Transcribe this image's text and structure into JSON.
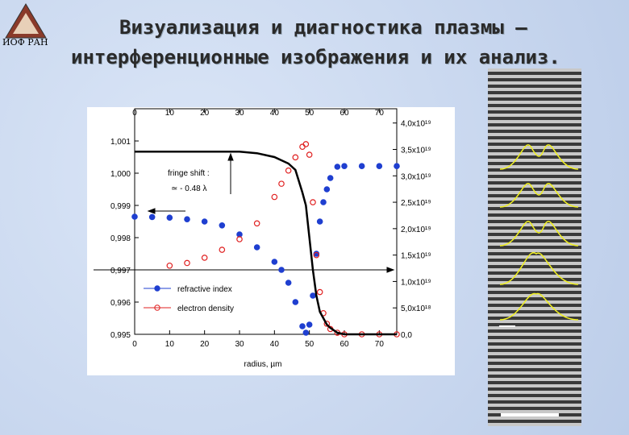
{
  "slide": {
    "logo": "ИОФ РАН",
    "title_lines": [
      "Визуализация и диагностика плазмы –",
      "интерференционные изображения и их анализ."
    ]
  },
  "chart_data": {
    "type": "line",
    "xlabel": "radius, µm",
    "annotations": [
      "fringe shift :",
      "≃ - 0.48 λ"
    ],
    "x": [
      0,
      5,
      10,
      15,
      20,
      25,
      30,
      35,
      40,
      42,
      44,
      46,
      48,
      49,
      50,
      51,
      52,
      53,
      54,
      55,
      56,
      58,
      60,
      65,
      70,
      75
    ],
    "xlim": [
      0,
      75
    ],
    "xticks": [
      0,
      10,
      20,
      30,
      40,
      50,
      60,
      70
    ],
    "ylim": [
      0.995,
      1.002
    ],
    "yticks": [
      {
        "value": 0.995,
        "label": "0,995"
      },
      {
        "value": 0.996,
        "label": "0,996"
      },
      {
        "value": 0.997,
        "label": "0,997"
      },
      {
        "value": 0.998,
        "label": "0,998"
      },
      {
        "value": 0.999,
        "label": "0,999"
      },
      {
        "value": 1.0,
        "label": "1,000"
      },
      {
        "value": 1.001,
        "label": "1,001"
      }
    ],
    "y2lim": [
      0,
      4.27e+19
    ],
    "y2ticks": [
      {
        "value": 0,
        "label": "0,0"
      },
      {
        "value": 5e+18,
        "label": "5,0x10¹⁸"
      },
      {
        "value": 1e+19,
        "label": "1,0x10¹⁹"
      },
      {
        "value": 1.5e+19,
        "label": "1,5x10¹⁹"
      },
      {
        "value": 2e+19,
        "label": "2,0x10¹⁹"
      },
      {
        "value": 2.5e+19,
        "label": "2,5x10¹⁹"
      },
      {
        "value": 3e+19,
        "label": "3,0x10¹⁹"
      },
      {
        "value": 3.5e+19,
        "label": "3,5x10¹⁹"
      },
      {
        "value": 4e+19,
        "label": "4,0x10¹⁹"
      }
    ],
    "series": [
      {
        "name": "refractive index",
        "color": "#1f3fd0",
        "marker": "filled",
        "values": [
          0.99865,
          0.99864,
          0.99862,
          0.99857,
          0.9985,
          0.99838,
          0.9981,
          0.9977,
          0.99725,
          0.997,
          0.9966,
          0.996,
          0.99525,
          0.99505,
          0.9953,
          0.9962,
          0.9975,
          0.9985,
          0.9991,
          0.9995,
          0.99985,
          1.0002,
          1.00022,
          1.00022,
          1.00022,
          1.00022
        ]
      },
      {
        "name": "electron density",
        "color": "#e02020",
        "marker": "open",
        "axis": "y2",
        "values": [
          null,
          null,
          1.3e+19,
          1.35e+19,
          1.45e+19,
          1.6e+19,
          1.8e+19,
          2.1e+19,
          2.6e+19,
          2.85e+19,
          3.1e+19,
          3.35e+19,
          3.55e+19,
          3.6e+19,
          3.4e+19,
          2.5e+19,
          1.5e+19,
          8e+18,
          4e+18,
          2e+18,
          1e+18,
          3e+17,
          0,
          0,
          0,
          0
        ]
      },
      {
        "color": "#000000",
        "marker": "line",
        "values": [
          1.00067,
          1.00067,
          1.00067,
          1.00067,
          1.00067,
          1.00067,
          1.00067,
          1.00062,
          1.0005,
          1.0004,
          1.0003,
          1.0001,
          0.9994,
          0.999,
          0.998,
          0.997,
          0.9962,
          0.9957,
          0.9955,
          0.9953,
          0.9952,
          0.99505,
          0.995,
          0.995,
          0.995,
          0.995
        ]
      }
    ]
  }
}
